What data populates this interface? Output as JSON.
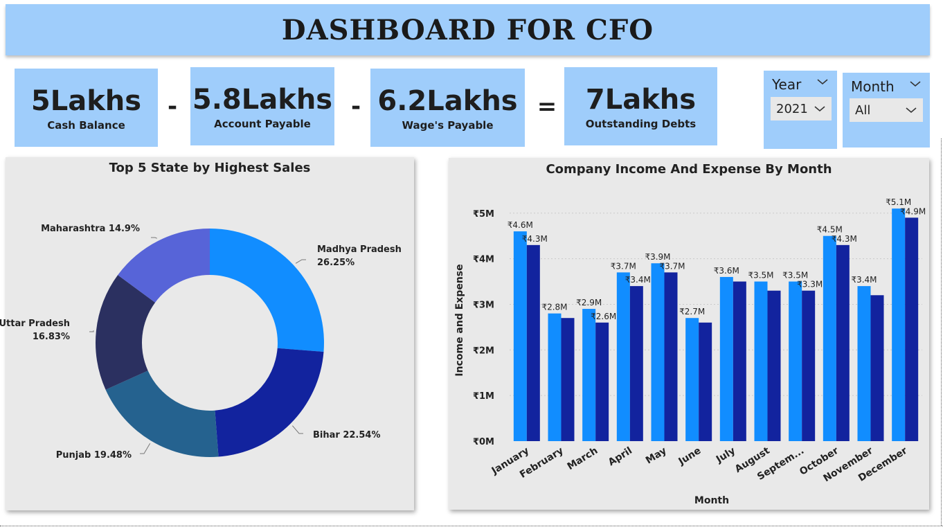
{
  "header": {
    "title": "DASHBOARD FOR CFO"
  },
  "kpis": [
    {
      "value": "5Lakhs",
      "label": "Cash Balance"
    },
    {
      "value": "5.8Lakhs",
      "label": "Account Payable"
    },
    {
      "value": "6.2Lakhs",
      "label": "Wage's Payable"
    },
    {
      "value": "7Lakhs",
      "label": "Outstanding Debts"
    }
  ],
  "operators": [
    "-",
    "-",
    "="
  ],
  "slicers": {
    "year": {
      "title": "Year",
      "value": "2021"
    },
    "month": {
      "title": "Month",
      "value": "All"
    }
  },
  "icons": {
    "chevron": "chevron-down-icon"
  },
  "colors": {
    "header_bg": "#9fcdfb",
    "income": "#118dff",
    "expense": "#12239e",
    "pie": [
      "#118dff",
      "#12239e",
      "#25628f",
      "#2b3060",
      "#5764d8"
    ]
  },
  "chart_data": [
    {
      "type": "pie",
      "variant": "donut",
      "title": "Top 5 State by Highest Sales",
      "categories": [
        "Madhya Pradesh",
        "Bihar",
        "Punjab",
        "Uttar Pradesh",
        "Maharashtra"
      ],
      "values": [
        26.25,
        22.54,
        19.48,
        16.83,
        14.9
      ],
      "labels": [
        "Madhya Pradesh 26.25%",
        "Bihar 22.54%",
        "Punjab 19.48%",
        "Uttar Pradesh 16.83%",
        "Maharashtra 14.9%"
      ],
      "legend": "none"
    },
    {
      "type": "bar",
      "title": "Company Income And Expense By Month",
      "xlabel": "Month",
      "ylabel": "Income and Expense",
      "categories": [
        "January",
        "February",
        "March",
        "April",
        "May",
        "June",
        "July",
        "August",
        "Septem...",
        "October",
        "November",
        "December"
      ],
      "series": [
        {
          "values": [
            4.6,
            2.8,
            2.9,
            3.7,
            3.9,
            2.7,
            3.6,
            3.5,
            3.5,
            4.5,
            3.4,
            5.1
          ],
          "labels": [
            "₹4.6M",
            "₹2.8M",
            "₹2.9M",
            "₹3.7M",
            "₹3.9M",
            "₹2.7M",
            "₹3.6M",
            "₹3.5M",
            "₹3.5M",
            "₹4.5M",
            "₹3.4M",
            "₹5.1M"
          ]
        },
        {
          "values": [
            4.3,
            2.7,
            2.6,
            3.4,
            3.7,
            2.6,
            3.5,
            3.3,
            3.3,
            4.3,
            3.2,
            4.9
          ],
          "labels": [
            "₹4.3M",
            "",
            "₹2.6M",
            "₹3.4M",
            "₹3.7M",
            "",
            "",
            "",
            "₹3.3M",
            "₹4.3M",
            "",
            "₹4.9M"
          ]
        }
      ],
      "ylim": [
        0,
        5.3
      ],
      "yticks": [
        0,
        1,
        2,
        3,
        4,
        5
      ],
      "yticklabels": [
        "₹0M",
        "₹1M",
        "₹2M",
        "₹3M",
        "₹4M",
        "₹5M"
      ],
      "grid": true,
      "legend": "none"
    }
  ]
}
